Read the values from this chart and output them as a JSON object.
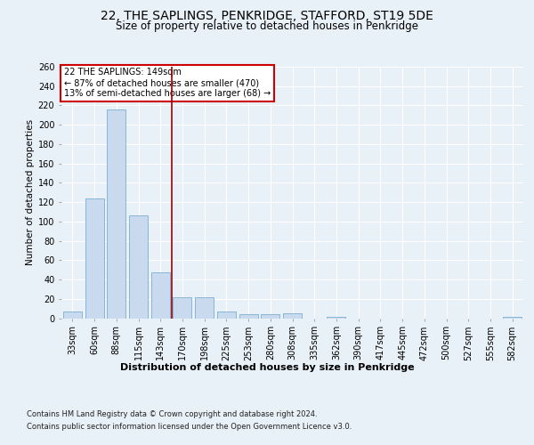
{
  "title1": "22, THE SAPLINGS, PENKRIDGE, STAFFORD, ST19 5DE",
  "title2": "Size of property relative to detached houses in Penkridge",
  "xlabel": "Distribution of detached houses by size in Penkridge",
  "ylabel": "Number of detached properties",
  "bar_labels": [
    "33sqm",
    "60sqm",
    "88sqm",
    "115sqm",
    "143sqm",
    "170sqm",
    "198sqm",
    "225sqm",
    "253sqm",
    "280sqm",
    "308sqm",
    "335sqm",
    "362sqm",
    "390sqm",
    "417sqm",
    "445sqm",
    "472sqm",
    "500sqm",
    "527sqm",
    "555sqm",
    "582sqm"
  ],
  "bar_values": [
    7,
    124,
    216,
    106,
    47,
    22,
    22,
    7,
    4,
    4,
    5,
    0,
    1,
    0,
    0,
    0,
    0,
    0,
    0,
    0,
    1
  ],
  "bar_color": "#c9d9ee",
  "bar_edge_color": "#7bafd4",
  "vline_x": 4.5,
  "vline_color": "#990000",
  "annotation_title": "22 THE SAPLINGS: 149sqm",
  "annotation_line1": "← 87% of detached houses are smaller (470)",
  "annotation_line2": "13% of semi-detached houses are larger (68) →",
  "annotation_box_color": "#ffffff",
  "annotation_box_edge": "#cc0000",
  "ylim": [
    0,
    260
  ],
  "yticks": [
    0,
    20,
    40,
    60,
    80,
    100,
    120,
    140,
    160,
    180,
    200,
    220,
    240,
    260
  ],
  "footer1": "Contains HM Land Registry data © Crown copyright and database right 2024.",
  "footer2": "Contains public sector information licensed under the Open Government Licence v3.0.",
  "bg_color": "#e8f0f8",
  "plot_bg_color": "#e8f0f8",
  "title1_fontsize": 10,
  "title2_fontsize": 8.5,
  "xlabel_fontsize": 8,
  "ylabel_fontsize": 7.5,
  "tick_fontsize": 7,
  "footer_fontsize": 6,
  "ann_fontsize": 7
}
